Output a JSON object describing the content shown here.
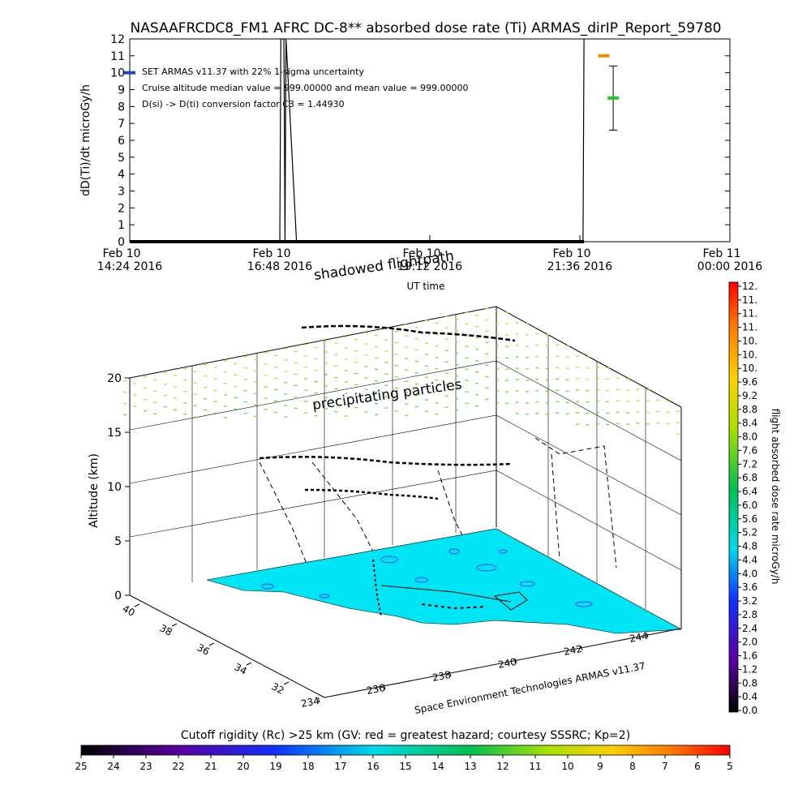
{
  "title": "NASAAFRCDC8_FM1 AFRC DC-8** absorbed dose rate (Ti) ARMAS_dirIP_Report_59780",
  "top_chart": {
    "ylabel": "dD(Ti)/dt microGy/h",
    "xlabel": "UT time",
    "y_ticks": [
      "0",
      "1",
      "2",
      "3",
      "4",
      "5",
      "6",
      "7",
      "8",
      "9",
      "10",
      "11",
      "12"
    ],
    "x_ticks": [
      {
        "date": "Feb 10",
        "time": "14:24 2016"
      },
      {
        "date": "Feb 10",
        "time": "16:48 2016"
      },
      {
        "date": "Feb 10",
        "time": "19:12 2016"
      },
      {
        "date": "Feb 10",
        "time": "21:36 2016"
      },
      {
        "date": "Feb 11",
        "time": "00:00 2016"
      }
    ],
    "annotations": [
      "SET ARMAS v11.37 with 22% 1-sigma uncertainty",
      "Cruise altitude median value = 999.00000 and mean value = 999.00000",
      "D(si) -> D(ti) conversion factor C3 = 1.44930"
    ],
    "overlay_label": "shadowed flightpath"
  },
  "chart_data": [
    {
      "type": "line",
      "title": "NASAAFRCDC8_FM1 AFRC DC-8** absorbed dose rate (Ti) ARMAS_dirIP_Report_59780",
      "xlabel": "UT time",
      "ylabel": "dD(Ti)/dt microGy/h",
      "xlim": [
        "2016-02-10 14:24",
        "2016-02-11 00:00"
      ],
      "ylim": [
        0,
        12
      ],
      "series": [
        {
          "x": [
            "2016-02-10 14:24",
            "2016-02-10 14:34",
            "2016-02-10 16:48",
            "2016-02-10 16:49",
            "2016-02-10 16:52",
            "2016-02-10 16:53",
            "2016-02-10 16:54",
            "2016-02-10 17:04",
            "2016-02-10 21:36",
            "2016-02-10 21:39",
            "2016-02-10 21:40"
          ],
          "y": [
            0,
            0,
            0,
            12,
            12,
            0,
            12,
            0,
            0,
            0,
            12
          ]
        }
      ],
      "points": [
        {
          "x": "2016-02-10 14:24",
          "y": 10.0,
          "color": "#2244cc"
        },
        {
          "x": "2016-02-10 21:59",
          "y": 11.0,
          "color": "#ff8c00"
        },
        {
          "x": "2016-02-10 22:08",
          "y": 8.5,
          "color": "#22cc22",
          "err": [
            6.6,
            10.4
          ]
        }
      ]
    },
    {
      "type": "scatter",
      "title": "",
      "zlabel": "Altitude (km)",
      "xlabel": "Space Environment Technologies ARMAS v11.37",
      "z_ticks": [
        "0",
        "5",
        "10",
        "15",
        "20"
      ],
      "lat_ticks": [
        "40",
        "38",
        "36",
        "34",
        "32"
      ],
      "lon_ticks": [
        "234",
        "236",
        "238",
        "240",
        "242",
        "244"
      ],
      "annotations": [
        "precipitating particles"
      ],
      "colorbar": {
        "label": "flight absorbed dose rate microGy/h",
        "ticks": [
          "12.",
          "11.",
          "11.",
          "11.",
          "10.",
          "10.",
          "10.",
          "9.6",
          "9.2",
          "8.8",
          "8.4",
          "8.0",
          "7.6",
          "7.2",
          "6.8",
          "6.4",
          "6.0",
          "5.6",
          "5.2",
          "4.8",
          "4.4",
          "4.0",
          "3.6",
          "3.2",
          "2.8",
          "2.4",
          "2.0",
          "1.6",
          "1.2",
          "0.8",
          "0.4",
          "0.0"
        ],
        "range": [
          0,
          12
        ]
      }
    },
    {
      "type": "heatmap",
      "title": "Cutoff rigidity (Rc) >25 km (GV: red = greatest hazard; courtesy SSSRC; Kp=2)",
      "ticks": [
        "25",
        "24",
        "23",
        "22",
        "21",
        "20",
        "19",
        "18",
        "17",
        "16",
        "15",
        "14",
        "13",
        "12",
        "11",
        "10",
        "9",
        "8",
        "7",
        "6",
        "5"
      ],
      "range": [
        25,
        5
      ]
    }
  ],
  "colors": {
    "ground": "#00e5f5",
    "contour": "#3344ff",
    "particles_lower": "#66dd22",
    "particles_upper": "#bbdd22"
  }
}
